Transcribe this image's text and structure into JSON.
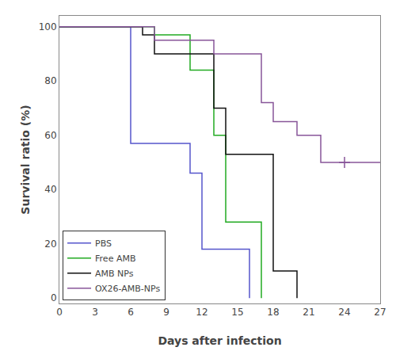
{
  "chart_data": {
    "type": "line",
    "xlabel": "Days after infection",
    "ylabel": "Survival ratio (%)",
    "xlim": [
      0,
      27
    ],
    "ylim": [
      -2,
      104
    ],
    "xticks": [
      0,
      3,
      6,
      9,
      12,
      15,
      18,
      21,
      24,
      27
    ],
    "yticks": [
      0,
      20,
      40,
      60,
      80,
      100
    ],
    "grid": false,
    "legend": "lower left",
    "series": [
      {
        "name": "PBS",
        "color": "#5555cc",
        "x": [
          0,
          6,
          6,
          11,
          11,
          12,
          12,
          13,
          13,
          14,
          14,
          16,
          16
        ],
        "values": [
          100,
          100,
          57,
          57,
          46,
          46,
          18,
          18,
          18,
          18,
          18,
          18,
          0
        ]
      },
      {
        "name": "Free AMB",
        "color": "#22aa22",
        "x": [
          0,
          8,
          8,
          11,
          11,
          13,
          13,
          14,
          14,
          15,
          15,
          16,
          16,
          17,
          17
        ],
        "values": [
          100,
          100,
          97,
          97,
          84,
          84,
          60,
          60,
          28,
          28,
          28,
          28,
          28,
          28,
          0
        ]
      },
      {
        "name": "AMB NPs",
        "color": "#111111",
        "x": [
          0,
          7,
          7,
          8,
          8,
          13,
          13,
          14,
          14,
          17,
          17,
          18,
          18,
          19,
          19,
          20,
          20
        ],
        "values": [
          100,
          100,
          97,
          97,
          90,
          90,
          70,
          70,
          53,
          53,
          53,
          53,
          10,
          10,
          10,
          10,
          0
        ]
      },
      {
        "name": "OX26-AMB-NPs",
        "color": "#885599",
        "x": [
          0,
          8,
          8,
          13,
          13,
          14,
          14,
          17,
          17,
          18,
          18,
          20,
          20,
          21,
          21,
          22,
          22,
          23,
          23,
          24,
          24,
          27
        ],
        "values": [
          100,
          100,
          95,
          95,
          90,
          90,
          90,
          90,
          72,
          72,
          65,
          65,
          60,
          60,
          60,
          60,
          50,
          50,
          50,
          50,
          50,
          50
        ],
        "censored": {
          "x": [
            24
          ],
          "values": [
            50
          ]
        }
      }
    ]
  }
}
